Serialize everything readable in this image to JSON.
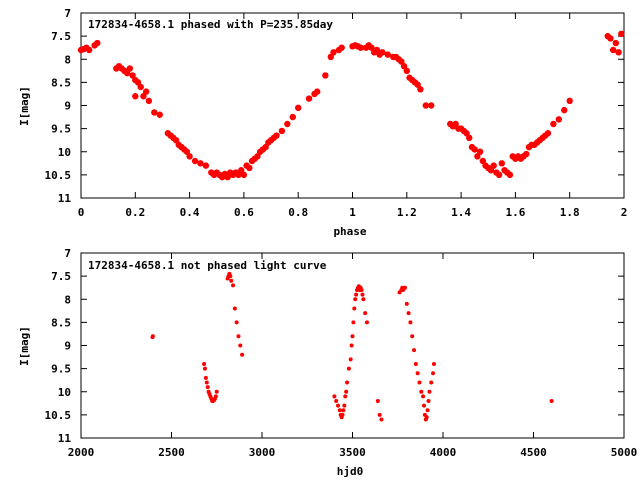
{
  "chart_data": [
    {
      "type": "scatter",
      "title": "172834-4658.1 phased with P=235.85day",
      "xlabel": "phase",
      "ylabel": "I[mag]",
      "xlim": [
        0,
        2
      ],
      "ylim": [
        7,
        11
      ],
      "y_inverted": true,
      "x_ticks": [
        "0",
        "0.2",
        "0.4",
        "0.6",
        "0.8",
        "1",
        "1.2",
        "1.4",
        "1.6",
        "1.8",
        "2"
      ],
      "y_ticks": [
        "7",
        "7.5",
        "8",
        "8.5",
        "9",
        "9.5",
        "10",
        "10.5",
        "11"
      ],
      "grid": false,
      "marker": "filled-circle",
      "color": "#ff0000",
      "series": [
        {
          "x": [
            0.0,
            0.01,
            0.02,
            0.03,
            0.05,
            0.06,
            0.13,
            0.14,
            0.15,
            0.16,
            0.17,
            0.18,
            0.19,
            0.2,
            0.2,
            0.21,
            0.22,
            0.23,
            0.24,
            0.25,
            0.27,
            0.29,
            0.32,
            0.33,
            0.34,
            0.35,
            0.36,
            0.37,
            0.38,
            0.39,
            0.4,
            0.42,
            0.44,
            0.46,
            0.48,
            0.49,
            0.5,
            0.51,
            0.52,
            0.53,
            0.54,
            0.55,
            0.56,
            0.57,
            0.58,
            0.59,
            0.6,
            0.61,
            0.62,
            0.63,
            0.64,
            0.65,
            0.66,
            0.67,
            0.68,
            0.69,
            0.7,
            0.71,
            0.72,
            0.74,
            0.76,
            0.78,
            0.8,
            0.84,
            0.86,
            0.87,
            0.9,
            0.92,
            0.93,
            0.95,
            0.96,
            1.0,
            1.01,
            1.02,
            1.03,
            1.05,
            1.06,
            1.07,
            1.08,
            1.09,
            1.1,
            1.11,
            1.13,
            1.15,
            1.16,
            1.17,
            1.18,
            1.19,
            1.2,
            1.21,
            1.22,
            1.23,
            1.24,
            1.25,
            1.27,
            1.29,
            1.36,
            1.37,
            1.38,
            1.39,
            1.4,
            1.41,
            1.42,
            1.43,
            1.44,
            1.45,
            1.46,
            1.47,
            1.48,
            1.49,
            1.5,
            1.51,
            1.52,
            1.53,
            1.54,
            1.55,
            1.56,
            1.57,
            1.58,
            1.59,
            1.6,
            1.61,
            1.62,
            1.63,
            1.64,
            1.65,
            1.66,
            1.67,
            1.68,
            1.69,
            1.7,
            1.71,
            1.72,
            1.74,
            1.76,
            1.78,
            1.8,
            1.94,
            1.95,
            1.96,
            1.97,
            1.98,
            1.99
          ],
          "y": [
            7.8,
            7.78,
            7.75,
            7.8,
            7.7,
            7.65,
            8.2,
            8.15,
            8.2,
            8.25,
            8.3,
            8.2,
            8.35,
            8.45,
            8.8,
            8.5,
            8.6,
            8.8,
            8.7,
            8.9,
            9.15,
            9.2,
            9.6,
            9.65,
            9.7,
            9.75,
            9.85,
            9.9,
            9.95,
            10.0,
            10.1,
            10.2,
            10.25,
            10.3,
            10.45,
            10.5,
            10.45,
            10.5,
            10.55,
            10.48,
            10.55,
            10.45,
            10.5,
            10.45,
            10.5,
            10.4,
            10.5,
            10.3,
            10.35,
            10.2,
            10.15,
            10.1,
            10.0,
            9.95,
            9.9,
            9.8,
            9.75,
            9.7,
            9.65,
            9.55,
            9.4,
            9.25,
            9.05,
            8.85,
            8.75,
            8.7,
            8.35,
            7.95,
            7.85,
            7.8,
            7.75,
            7.72,
            7.7,
            7.72,
            7.75,
            7.75,
            7.7,
            7.75,
            7.85,
            7.8,
            7.9,
            7.85,
            7.9,
            7.95,
            7.95,
            8.0,
            8.05,
            8.15,
            8.25,
            8.4,
            8.45,
            8.5,
            8.55,
            8.65,
            9.0,
            9.0,
            9.4,
            9.45,
            9.4,
            9.5,
            9.5,
            9.55,
            9.6,
            9.7,
            9.9,
            9.95,
            10.1,
            10.0,
            10.2,
            10.3,
            10.35,
            10.4,
            10.3,
            10.45,
            10.5,
            10.25,
            10.4,
            10.45,
            10.5,
            10.1,
            10.15,
            10.1,
            10.15,
            10.1,
            10.05,
            9.9,
            9.85,
            9.85,
            9.8,
            9.75,
            9.7,
            9.65,
            9.6,
            9.4,
            9.3,
            9.1,
            8.9,
            7.5,
            7.55,
            7.8,
            7.65,
            7.85,
            7.45
          ]
        }
      ]
    },
    {
      "type": "scatter",
      "title": "172834-4658.1 not phased light curve",
      "xlabel": "hjd0",
      "ylabel": "I[mag]",
      "xlim": [
        2000,
        5000
      ],
      "ylim": [
        7,
        11
      ],
      "y_inverted": true,
      "x_ticks": [
        "2000",
        "2500",
        "3000",
        "3500",
        "4000",
        "4500",
        "5000"
      ],
      "y_ticks": [
        "7",
        "7.5",
        "8",
        "8.5",
        "9",
        "9.5",
        "10",
        "10.5",
        "11"
      ],
      "grid": false,
      "marker": "filled-circle",
      "color": "#ff0000",
      "series": [
        {
          "x": [
            2395,
            2397,
            2680,
            2685,
            2690,
            2695,
            2700,
            2705,
            2710,
            2715,
            2720,
            2725,
            2730,
            2735,
            2740,
            2745,
            2750,
            2810,
            2815,
            2820,
            2825,
            2830,
            2840,
            2850,
            2860,
            2870,
            2880,
            2890,
            3400,
            3410,
            3420,
            3430,
            3435,
            3440,
            3445,
            3450,
            3455,
            3460,
            3465,
            3470,
            3480,
            3490,
            3495,
            3500,
            3505,
            3510,
            3515,
            3520,
            3525,
            3530,
            3535,
            3540,
            3545,
            3550,
            3555,
            3560,
            3570,
            3580,
            3640,
            3650,
            3660,
            3760,
            3770,
            3775,
            3780,
            3790,
            3800,
            3810,
            3820,
            3830,
            3840,
            3850,
            3860,
            3870,
            3880,
            3890,
            3895,
            3900,
            3905,
            3910,
            3915,
            3920,
            3925,
            3935,
            3945,
            3950,
            4600
          ],
          "y": [
            8.82,
            8.8,
            9.4,
            9.5,
            9.7,
            9.8,
            9.9,
            10.0,
            10.05,
            10.1,
            10.15,
            10.2,
            10.2,
            10.18,
            10.15,
            10.1,
            10.0,
            7.55,
            7.5,
            7.45,
            7.5,
            7.6,
            7.7,
            8.2,
            8.5,
            8.8,
            9.0,
            9.2,
            10.1,
            10.2,
            10.3,
            10.4,
            10.5,
            10.55,
            10.5,
            10.4,
            10.3,
            10.1,
            10.0,
            9.8,
            9.5,
            9.3,
            9.0,
            8.8,
            8.5,
            8.2,
            8.0,
            7.9,
            7.8,
            7.75,
            7.72,
            7.8,
            7.75,
            7.8,
            7.9,
            8.0,
            8.3,
            8.5,
            10.2,
            10.5,
            10.6,
            7.85,
            7.8,
            7.75,
            7.8,
            7.75,
            8.1,
            8.3,
            8.5,
            8.8,
            9.1,
            9.4,
            9.6,
            9.8,
            10.0,
            10.1,
            10.3,
            10.5,
            10.6,
            10.55,
            10.4,
            10.2,
            10.0,
            9.8,
            9.6,
            9.4,
            10.2
          ]
        }
      ]
    }
  ]
}
